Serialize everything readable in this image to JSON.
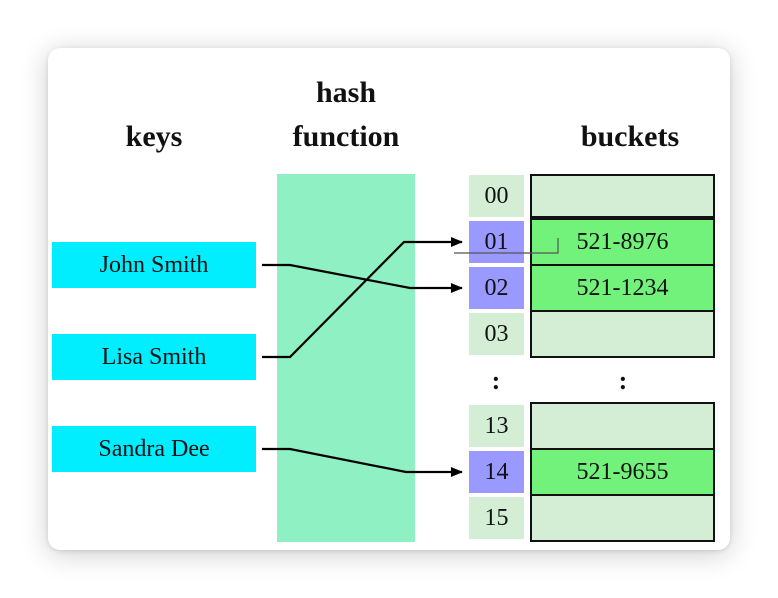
{
  "headers": {
    "keys": "keys",
    "hash_line1": "hash",
    "hash_line2": "function",
    "buckets": "buckets"
  },
  "keys": [
    "John Smith",
    "Lisa Smith",
    "Sandra Dee"
  ],
  "indices": [
    "00",
    "01",
    "02",
    "03",
    "13",
    "14",
    "15"
  ],
  "buckets": [
    "",
    "521-8976",
    "521-1234",
    "",
    "",
    "521-9655",
    ""
  ],
  "ellipsis": ":",
  "colors": {
    "key_box": "#00eeff",
    "hash_column": "#8ff0c4",
    "index_default": "#d4eed6",
    "index_highlight": "#9999ff",
    "bucket_empty": "#d4eed6",
    "bucket_filled": "#72f27a"
  }
}
